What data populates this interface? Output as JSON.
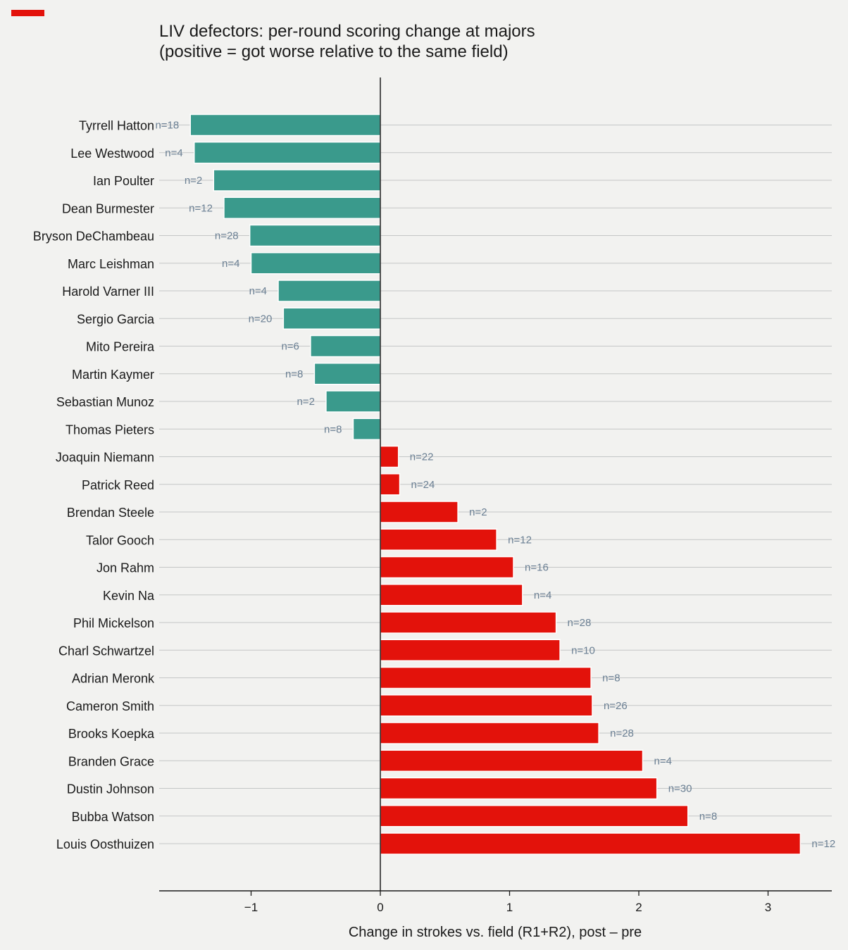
{
  "accent_color": "#e3120b",
  "chart_data": {
    "type": "bar",
    "orientation": "horizontal",
    "title": "LIV defectors: per-round scoring change at majors",
    "subtitle": "(positive = got worse relative to the same field)",
    "xlabel": "Change in strokes vs. field (R1+R2), post – pre",
    "ylabel": "",
    "xlim": [
      -1.71,
      3.48
    ],
    "xticks": [
      -1,
      0,
      1,
      2,
      3
    ],
    "xtick_labels": [
      "−1",
      "0",
      "1",
      "2",
      "3"
    ],
    "grid": "horizontal gridlines at each category",
    "colors": {
      "negative": "#3a9a8c",
      "positive": "#e3120b",
      "n_label": "#6a7f93"
    },
    "categories": [
      "Tyrrell Hatton",
      "Lee Westwood",
      "Ian Poulter",
      "Dean Burmester",
      "Bryson DeChambeau",
      "Marc Leishman",
      "Harold Varner III",
      "Sergio Garcia",
      "Mito Pereira",
      "Martin Kaymer",
      "Sebastian Munoz",
      "Thomas Pieters",
      "Joaquin Niemann",
      "Patrick Reed",
      "Brendan Steele",
      "Talor Gooch",
      "Jon Rahm",
      "Kevin Na",
      "Phil Mickelson",
      "Charl Schwartzel",
      "Adrian Meronk",
      "Cameron Smith",
      "Brooks Koepka",
      "Branden Grace",
      "Dustin Johnson",
      "Bubba Watson",
      "Louis Oosthuizen"
    ],
    "values": [
      -1.47,
      -1.44,
      -1.29,
      -1.21,
      -1.01,
      -1.0,
      -0.79,
      -0.75,
      -0.54,
      -0.51,
      -0.42,
      -0.21,
      0.14,
      0.15,
      0.6,
      0.9,
      1.03,
      1.1,
      1.36,
      1.39,
      1.63,
      1.64,
      1.69,
      2.03,
      2.14,
      2.38,
      3.25
    ],
    "n_labels": [
      "n=18",
      "n=4",
      "n=2",
      "n=12",
      "n=28",
      "n=4",
      "n=4",
      "n=20",
      "n=6",
      "n=8",
      "n=2",
      "n=8",
      "n=22",
      "n=24",
      "n=2",
      "n=12",
      "n=16",
      "n=4",
      "n=28",
      "n=10",
      "n=8",
      "n=26",
      "n=28",
      "n=4",
      "n=30",
      "n=8",
      "n=12"
    ]
  }
}
